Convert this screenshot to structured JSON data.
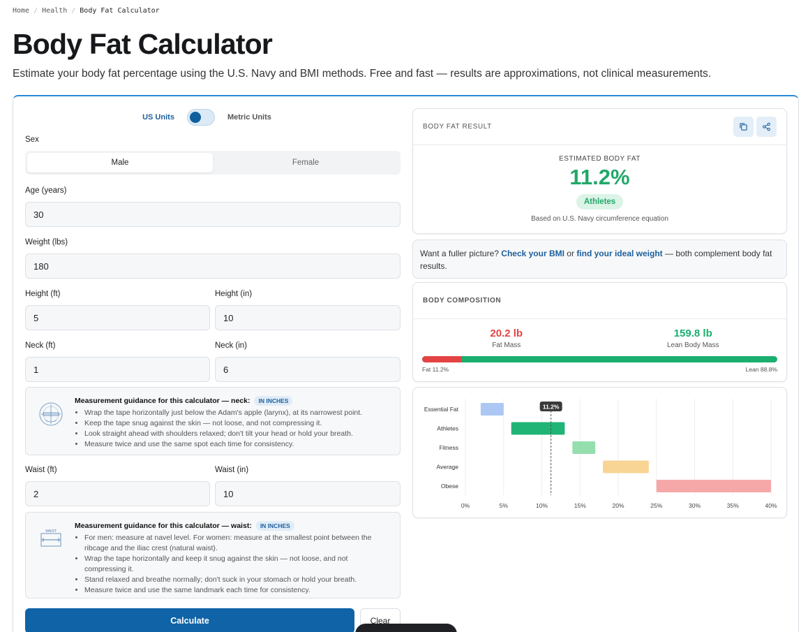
{
  "breadcrumb": {
    "home": "Home",
    "section": "Health",
    "current": "Body Fat Calculator"
  },
  "title": "Body Fat Calculator",
  "subtitle": "Estimate your body fat percentage using the U.S. Navy and BMI methods. Free and fast — results are approximations, not clinical measurements.",
  "units": {
    "us": "US Units",
    "metric": "Metric Units",
    "selected": "US Units"
  },
  "form": {
    "sex_label": "Sex",
    "sex_options": [
      "Male",
      "Female"
    ],
    "sex_selected": "Male",
    "age_label": "Age (years)",
    "age_value": "30",
    "weight_label": "Weight (lbs)",
    "weight_value": "180",
    "height_ft_label": "Height (ft)",
    "height_ft_value": "5",
    "height_in_label": "Height (in)",
    "height_in_value": "10",
    "neck_ft_label": "Neck (ft)",
    "neck_ft_value": "1",
    "neck_in_label": "Neck (in)",
    "neck_in_value": "6",
    "waist_ft_label": "Waist (ft)",
    "waist_ft_value": "2",
    "waist_in_label": "Waist (in)",
    "waist_in_value": "10",
    "calculate": "Calculate",
    "clear": "Clear"
  },
  "neck_guide": {
    "title": "Measurement guidance for this calculator — neck:",
    "badge": "IN INCHES",
    "icon": "neck-measure-icon",
    "items": [
      "Wrap the tape horizontally just below the Adam's apple (larynx), at its narrowest point.",
      "Keep the tape snug against the skin — not loose, and not compressing it.",
      "Look straight ahead with shoulders relaxed; don't tilt your head or hold your breath.",
      "Measure twice and use the same spot each time for consistency."
    ]
  },
  "waist_guide": {
    "title": "Measurement guidance for this calculator — waist:",
    "badge": "IN INCHES",
    "icon": "waist-measure-icon",
    "icon_text": "WAIST",
    "items": [
      "For men: measure at navel level. For women: measure at the smallest point between the ribcage and the iliac crest (natural waist).",
      "Wrap the tape horizontally and keep it snug against the skin — not loose, and not compressing it.",
      "Stand relaxed and breathe normally; don't suck in your stomach or hold your breath.",
      "Measure twice and use the same landmark each time for consistency."
    ]
  },
  "result": {
    "header": "BODY FAT RESULT",
    "estimated_label": "ESTIMATED BODY FAT",
    "value": "11.2%",
    "category": "Athletes",
    "note": "Based on U.S. Navy circumference equation",
    "accent": "#22a86a"
  },
  "hint": {
    "prefix": "Want a fuller picture? ",
    "link1": "Check your BMI",
    "middle": " or ",
    "link2": "find your ideal weight",
    "suffix": " — both complement body fat results."
  },
  "composition": {
    "header": "BODY COMPOSITION",
    "fat_mass": "20.2 lb",
    "fat_label": "Fat Mass",
    "lean_mass": "159.8 lb",
    "lean_label": "Lean Body Mass",
    "fat_pct": 11.2,
    "fat_legend": "Fat 11.2%",
    "lean_legend": "Lean 88.8%",
    "fat_color": "#e44343",
    "lean_color": "#1aae6f"
  },
  "chart_data": {
    "type": "bar",
    "orientation": "horizontal-range",
    "categories": [
      "Essential Fat",
      "Athletes",
      "Fitness",
      "Average",
      "Obese"
    ],
    "ranges": [
      [
        2,
        5
      ],
      [
        6,
        13
      ],
      [
        14,
        17
      ],
      [
        18,
        24
      ],
      [
        25,
        40
      ]
    ],
    "colors": [
      "#a8c4f2",
      "#14b070",
      "#8fdcaa",
      "#f8d28f",
      "#f5a3a3"
    ],
    "x_ticks": [
      0,
      5,
      10,
      15,
      20,
      25,
      30,
      35,
      40
    ],
    "x_tick_labels": [
      "0%",
      "5%",
      "10%",
      "15%",
      "20%",
      "25%",
      "30%",
      "35%",
      "40%"
    ],
    "xlim": [
      0,
      40
    ],
    "marker_value": 11.2,
    "marker_label": "11.2%",
    "grid": true
  }
}
